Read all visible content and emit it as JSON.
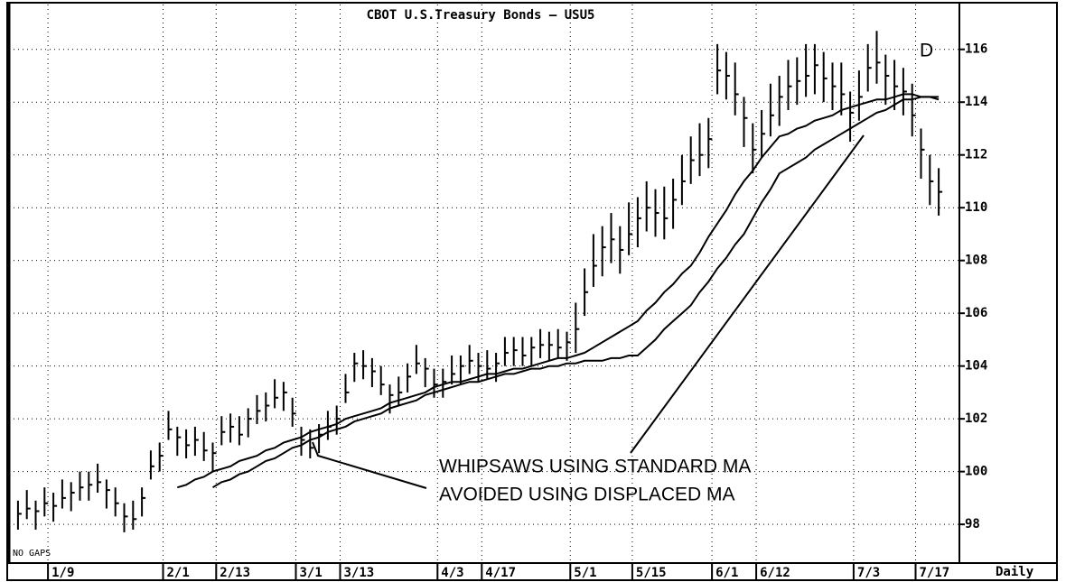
{
  "chart_data": {
    "type": "ohlc",
    "title": "CBOT U.S.Treasury Bonds — USU5",
    "footnote": "NO GAPS",
    "period": "Daily",
    "annotations": [
      "WHIPSAWS USING STANDARD MA",
      "AVOIDED USING DISPLACED MA",
      "D"
    ],
    "categories": [
      null,
      null,
      null,
      null,
      "1/9",
      null,
      null,
      null,
      null,
      null,
      null,
      null,
      null,
      null,
      null,
      null,
      null,
      "2/1",
      null,
      null,
      null,
      null,
      null,
      "2/13",
      null,
      null,
      null,
      null,
      null,
      null,
      null,
      null,
      "3/1",
      null,
      null,
      null,
      null,
      "3/13",
      null,
      null,
      null,
      null,
      null,
      null,
      null,
      null,
      null,
      null,
      "4/3",
      null,
      null,
      null,
      null,
      "4/17",
      null,
      null,
      null,
      null,
      null,
      null,
      null,
      null,
      null,
      "5/1",
      null,
      null,
      null,
      null,
      null,
      null,
      "5/15",
      null,
      null,
      null,
      null,
      null,
      null,
      null,
      null,
      "6/1",
      null,
      null,
      null,
      null,
      "6/12",
      null,
      null,
      null,
      null,
      null,
      null,
      null,
      null,
      null,
      null,
      "7/3",
      null,
      null,
      null,
      null,
      null,
      null,
      "7/17",
      null,
      null
    ],
    "high": [
      98.9,
      99.3,
      98.9,
      99.4,
      99.2,
      99.7,
      99.6,
      100.0,
      100.0,
      100.3,
      99.7,
      99.4,
      98.8,
      98.9,
      99.4,
      100.8,
      101.1,
      102.3,
      101.7,
      101.6,
      101.7,
      101.5,
      101.1,
      102.1,
      102.2,
      102.1,
      102.4,
      102.9,
      103.0,
      103.5,
      103.4,
      102.8,
      101.7,
      101.6,
      101.8,
      102.3,
      102.5,
      103.7,
      104.5,
      104.6,
      104.3,
      104.0,
      103.3,
      103.6,
      104.1,
      104.8,
      104.3,
      103.9,
      103.9,
      104.4,
      104.4,
      104.8,
      104.5,
      104.6,
      104.5,
      105.1,
      105.1,
      105.1,
      105.1,
      105.4,
      105.3,
      105.4,
      105.3,
      106.4,
      107.7,
      109.0,
      109.3,
      109.8,
      109.3,
      110.2,
      110.4,
      111.0,
      110.7,
      110.8,
      111.1,
      112.0,
      112.7,
      113.2,
      113.4,
      116.2,
      115.9,
      115.5,
      114.2,
      113.2,
      113.7,
      114.7,
      115.0,
      115.6,
      115.7,
      116.2,
      116.2,
      115.9,
      115.5,
      115.5,
      114.4,
      115.2,
      116.2,
      116.7,
      115.8,
      115.6,
      115.3,
      114.7,
      113.0,
      112.0,
      111.5
    ],
    "low": [
      97.8,
      98.2,
      97.8,
      98.3,
      98.1,
      98.6,
      98.5,
      98.9,
      98.9,
      99.2,
      98.6,
      98.3,
      97.7,
      97.8,
      98.3,
      99.7,
      100.0,
      101.2,
      100.6,
      100.5,
      100.6,
      100.4,
      100.0,
      101.0,
      101.1,
      101.0,
      101.3,
      101.8,
      101.9,
      102.4,
      102.3,
      101.7,
      100.6,
      100.5,
      100.7,
      101.2,
      101.4,
      102.6,
      103.4,
      103.5,
      103.2,
      102.9,
      102.2,
      102.5,
      103.0,
      103.7,
      103.2,
      102.8,
      102.8,
      103.3,
      103.3,
      103.7,
      103.4,
      103.5,
      103.4,
      104.0,
      104.0,
      104.0,
      104.0,
      104.3,
      104.2,
      104.3,
      104.2,
      104.5,
      105.9,
      107.0,
      107.4,
      107.9,
      107.5,
      108.2,
      108.5,
      109.1,
      108.9,
      108.8,
      109.2,
      110.1,
      110.9,
      111.2,
      111.5,
      114.3,
      114.1,
      113.5,
      112.3,
      111.3,
      111.9,
      112.7,
      113.1,
      113.7,
      113.9,
      114.2,
      114.3,
      114.0,
      113.7,
      113.5,
      112.5,
      113.3,
      114.4,
      114.7,
      113.9,
      113.7,
      113.5,
      112.7,
      111.1,
      110.1,
      109.7
    ],
    "close": [
      98.4,
      98.6,
      98.5,
      98.8,
      98.7,
      99.0,
      99.2,
      99.4,
      99.5,
      99.6,
      99.3,
      98.8,
      98.3,
      98.2,
      99.0,
      100.2,
      100.6,
      101.6,
      101.3,
      101.0,
      101.2,
      100.8,
      100.7,
      101.5,
      101.7,
      101.4,
      102.0,
      102.3,
      102.5,
      102.8,
      103.0,
      102.2,
      101.2,
      100.9,
      101.4,
      101.7,
      102.0,
      103.0,
      104.1,
      104.0,
      103.8,
      103.3,
      102.9,
      103.0,
      103.6,
      104.1,
      103.9,
      103.3,
      103.4,
      103.7,
      104.0,
      104.2,
      104.0,
      103.9,
      104.1,
      104.5,
      104.6,
      104.4,
      104.7,
      104.8,
      104.8,
      104.7,
      104.9,
      105.4,
      106.8,
      107.8,
      108.5,
      108.8,
      108.4,
      109.0,
      109.6,
      110.0,
      109.8,
      109.6,
      110.3,
      111.0,
      111.8,
      112.0,
      112.6,
      115.2,
      115.0,
      114.3,
      113.4,
      112.2,
      112.8,
      113.5,
      114.2,
      114.6,
      114.8,
      115.0,
      115.4,
      114.9,
      114.6,
      114.3,
      113.6,
      114.2,
      115.3,
      115.5,
      115.0,
      114.6,
      114.4,
      113.5,
      112.2,
      111.0,
      110.6
    ],
    "color": "#000000",
    "series": [
      {
        "color": "#000000",
        "values": [
          null,
          null,
          null,
          null,
          null,
          null,
          null,
          null,
          null,
          null,
          null,
          null,
          null,
          null,
          null,
          null,
          null,
          null,
          99.4,
          99.5,
          99.7,
          99.8,
          100.0,
          100.1,
          100.2,
          100.4,
          100.5,
          100.6,
          100.8,
          100.9,
          101.1,
          101.2,
          101.3,
          101.5,
          101.6,
          101.7,
          101.8,
          102.0,
          102.1,
          102.2,
          102.3,
          102.4,
          102.6,
          102.7,
          102.8,
          102.9,
          103.0,
          103.2,
          103.3,
          103.4,
          103.4,
          103.5,
          103.6,
          103.7,
          103.7,
          103.8,
          103.9,
          103.9,
          104.0,
          104.1,
          104.2,
          104.3,
          104.3,
          104.4,
          104.5,
          104.7,
          104.9,
          105.1,
          105.3,
          105.5,
          105.7,
          106.1,
          106.4,
          106.8,
          107.1,
          107.5,
          107.8,
          108.3,
          108.9,
          109.4,
          109.9,
          110.5,
          111.0,
          111.4,
          111.9,
          112.3,
          112.7,
          112.8,
          113.0,
          113.1,
          113.3,
          113.4,
          113.5,
          113.7,
          113.8,
          113.9,
          114.0,
          114.1,
          114.1,
          114.2,
          114.3,
          114.3,
          114.2,
          114.2,
          114.1
        ]
      },
      {
        "color": "#000000",
        "values": [
          null,
          null,
          null,
          null,
          null,
          null,
          null,
          null,
          null,
          null,
          null,
          null,
          null,
          null,
          null,
          null,
          null,
          null,
          null,
          null,
          null,
          null,
          99.4,
          99.6,
          99.7,
          99.9,
          100.0,
          100.2,
          100.4,
          100.5,
          100.7,
          100.9,
          101.0,
          101.2,
          101.3,
          101.5,
          101.6,
          101.7,
          101.9,
          102.0,
          102.1,
          102.2,
          102.4,
          102.5,
          102.6,
          102.7,
          102.9,
          103.0,
          103.1,
          103.2,
          103.3,
          103.4,
          103.4,
          103.5,
          103.6,
          103.7,
          103.7,
          103.8,
          103.9,
          103.9,
          104.0,
          104.0,
          104.1,
          104.1,
          104.2,
          104.2,
          104.2,
          104.3,
          104.3,
          104.4,
          104.4,
          104.7,
          105.0,
          105.4,
          105.7,
          106.0,
          106.3,
          106.8,
          107.2,
          107.7,
          108.1,
          108.6,
          109.0,
          109.6,
          110.2,
          110.7,
          111.3,
          111.5,
          111.7,
          111.9,
          112.2,
          112.4,
          112.6,
          112.8,
          113.0,
          113.2,
          113.4,
          113.6,
          113.7,
          113.9,
          114.1,
          114.1,
          114.2,
          114.2,
          114.2
        ]
      }
    ],
    "ylim": [
      96.5,
      117.7
    ],
    "yticks": [
      98,
      100,
      102,
      104,
      106,
      108,
      110,
      112,
      114,
      116
    ],
    "grid": true
  }
}
